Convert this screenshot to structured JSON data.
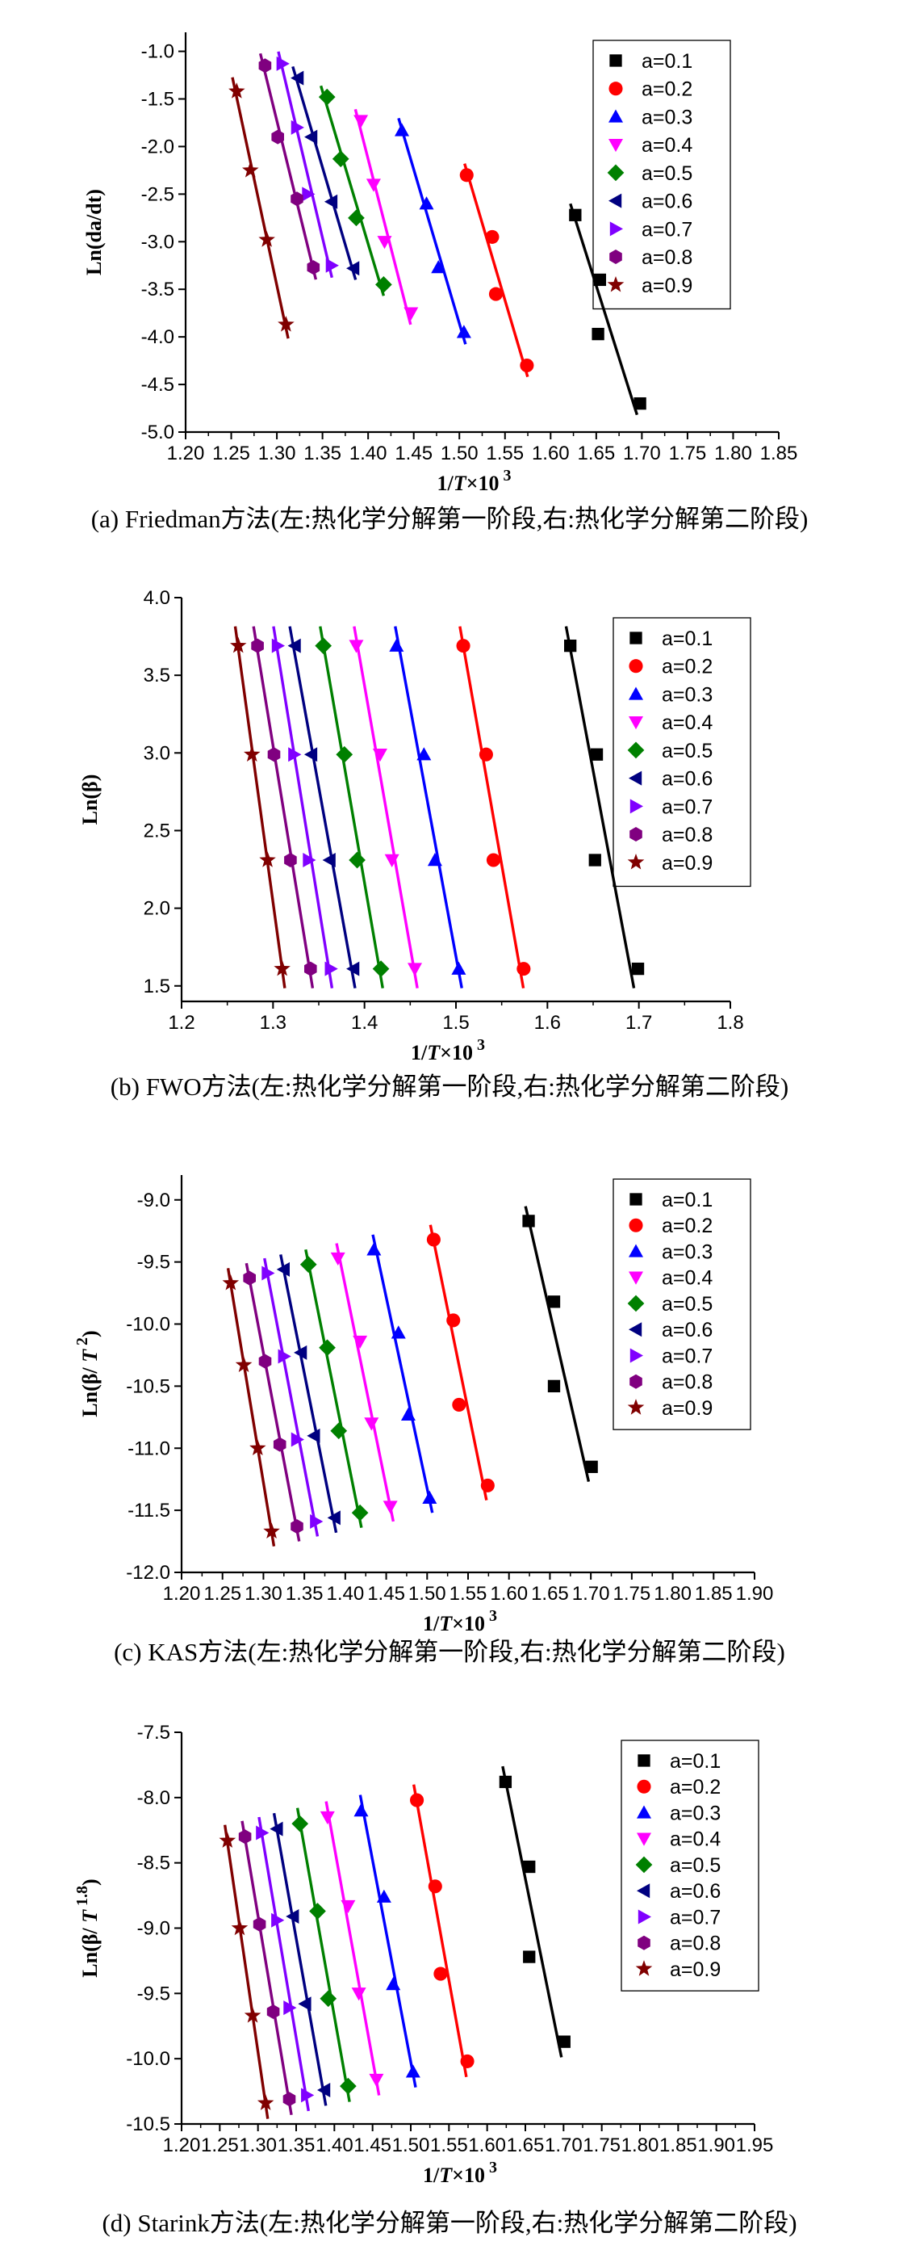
{
  "colors": {
    "a=0.1": "#000000",
    "a=0.2": "#ff0000",
    "a=0.3": "#0000ff",
    "a=0.4": "#ff00ff",
    "a=0.5": "#008000",
    "a=0.6": "#000080",
    "a=0.7": "#8000ff",
    "a=0.8": "#800080",
    "a=0.9": "#800000"
  },
  "marker_shapes": {
    "a=0.1": "square",
    "a=0.2": "circle",
    "a=0.3": "triangle-up",
    "a=0.4": "triangle-down",
    "a=0.5": "diamond",
    "a=0.6": "triangle-left",
    "a=0.7": "triangle-right",
    "a=0.8": "hexagon",
    "a=0.9": "star"
  },
  "chart_data": [
    {
      "type": "scatter",
      "panel_id": "a",
      "caption": "(a) Friedman方法(左:热化学分解第一阶段,右:热化学分解第二阶段)",
      "ylabel": "Ln(da/dt)",
      "xlabel_prefix": "1/",
      "xlabel_var": "T",
      "xlabel_suffix": "×10",
      "xlabel_sup": "3",
      "xlim": [
        1.2,
        1.85
      ],
      "ylim": [
        -5.0,
        -0.8
      ],
      "xticks": [
        "1.20",
        "1.25",
        "1.30",
        "1.35",
        "1.40",
        "1.45",
        "1.50",
        "1.55",
        "1.60",
        "1.65",
        "1.70",
        "1.75",
        "1.80",
        "1.85"
      ],
      "yticks": [
        "-1.0",
        "-1.5",
        "-2.0",
        "-2.5",
        "-3.0",
        "-3.5",
        "-4.0",
        "-4.5",
        "-5.0"
      ],
      "series": [
        {
          "name": "a=0.1",
          "x": [
            1.627,
            1.654,
            1.652,
            1.698
          ],
          "y": [
            -2.72,
            -3.4,
            -3.97,
            -4.7
          ]
        },
        {
          "name": "a=0.2",
          "x": [
            1.508,
            1.536,
            1.54,
            1.574
          ],
          "y": [
            -2.3,
            -2.95,
            -3.55,
            -4.3
          ]
        },
        {
          "name": "a=0.3",
          "x": [
            1.437,
            1.464,
            1.477,
            1.505
          ],
          "y": [
            -1.83,
            -2.6,
            -3.27,
            -3.95
          ]
        },
        {
          "name": "a=0.4",
          "x": [
            1.392,
            1.406,
            1.418,
            1.447
          ],
          "y": [
            -1.73,
            -2.4,
            -3.0,
            -3.75
          ]
        },
        {
          "name": "a=0.5",
          "x": [
            1.355,
            1.37,
            1.387,
            1.417
          ],
          "y": [
            -1.48,
            -2.13,
            -2.75,
            -3.45
          ]
        },
        {
          "name": "a=0.6",
          "x": [
            1.323,
            1.338,
            1.36,
            1.384
          ],
          "y": [
            -1.28,
            -1.9,
            -2.58,
            -3.28
          ]
        },
        {
          "name": "a=0.7",
          "x": [
            1.306,
            1.322,
            1.334,
            1.36
          ],
          "y": [
            -1.13,
            -1.8,
            -2.5,
            -3.25
          ]
        },
        {
          "name": "a=0.8",
          "x": [
            1.287,
            1.301,
            1.322,
            1.34
          ],
          "y": [
            -1.15,
            -1.9,
            -2.55,
            -3.27
          ]
        },
        {
          "name": "a=0.9",
          "x": [
            1.256,
            1.271,
            1.289,
            1.31
          ],
          "y": [
            -1.42,
            -2.25,
            -2.98,
            -3.87
          ]
        }
      ]
    },
    {
      "type": "scatter",
      "panel_id": "b",
      "caption": "(b) FWO方法(左:热化学分解第一阶段,右:热化学分解第二阶段)",
      "ylabel": "Ln(β)",
      "xlabel_prefix": "1/",
      "xlabel_var": "T",
      "xlabel_suffix": "×10",
      "xlabel_sup": "3",
      "xlim": [
        1.2,
        1.8
      ],
      "ylim": [
        1.4,
        4.0
      ],
      "xticks": [
        "1.2",
        "1.3",
        "1.4",
        "1.5",
        "1.6",
        "1.7",
        "1.8"
      ],
      "yticks": [
        "1.5",
        "2.0",
        "2.5",
        "3.0",
        "3.5",
        "4.0"
      ],
      "series": [
        {
          "name": "a=0.1",
          "x": [
            1.625,
            1.654,
            1.652,
            1.699
          ],
          "y": [
            3.69,
            2.99,
            2.31,
            1.61
          ]
        },
        {
          "name": "a=0.2",
          "x": [
            1.508,
            1.533,
            1.541,
            1.574
          ],
          "y": [
            3.69,
            2.99,
            2.31,
            1.61
          ]
        },
        {
          "name": "a=0.3",
          "x": [
            1.435,
            1.465,
            1.477,
            1.503
          ],
          "y": [
            3.69,
            2.99,
            2.31,
            1.61
          ]
        },
        {
          "name": "a=0.4",
          "x": [
            1.391,
            1.417,
            1.43,
            1.455
          ],
          "y": [
            3.69,
            2.99,
            2.31,
            1.61
          ]
        },
        {
          "name": "a=0.5",
          "x": [
            1.355,
            1.378,
            1.392,
            1.418
          ],
          "y": [
            3.69,
            2.99,
            2.31,
            1.61
          ]
        },
        {
          "name": "a=0.6",
          "x": [
            1.324,
            1.342,
            1.362,
            1.388
          ],
          "y": [
            3.69,
            2.99,
            2.31,
            1.61
          ]
        },
        {
          "name": "a=0.7",
          "x": [
            1.305,
            1.323,
            1.339,
            1.363
          ],
          "y": [
            3.69,
            2.99,
            2.31,
            1.61
          ]
        },
        {
          "name": "a=0.8",
          "x": [
            1.283,
            1.301,
            1.319,
            1.341
          ],
          "y": [
            3.69,
            2.99,
            2.31,
            1.61
          ]
        },
        {
          "name": "a=0.9",
          "x": [
            1.262,
            1.277,
            1.294,
            1.31
          ],
          "y": [
            3.69,
            2.99,
            2.31,
            1.61
          ]
        }
      ]
    },
    {
      "type": "scatter",
      "panel_id": "c",
      "caption": "(c) KAS方法(左:热化学分解第一阶段,右:热化学分解第二阶段)",
      "ylabel": "Ln(β/",
      "ylabel_var": "T",
      "ylabel_sup": "2",
      "ylabel_close": ")",
      "xlabel_prefix": "1/",
      "xlabel_var": "T",
      "xlabel_suffix": "×10",
      "xlabel_sup": "3",
      "xlim": [
        1.2,
        1.9
      ],
      "ylim": [
        -12.0,
        -8.8
      ],
      "xticks": [
        "1.20",
        "1.25",
        "1.30",
        "1.35",
        "1.40",
        "1.45",
        "1.50",
        "1.55",
        "1.60",
        "1.65",
        "1.70",
        "1.75",
        "1.80",
        "1.85",
        "1.90"
      ],
      "yticks": [
        "-9.0",
        "-9.5",
        "-10.0",
        "-10.5",
        "-11.0",
        "-11.5",
        "-12.0"
      ],
      "series": [
        {
          "name": "a=0.1",
          "x": [
            1.624,
            1.655,
            1.655,
            1.701
          ],
          "y": [
            -9.17,
            -9.82,
            -10.5,
            -11.15
          ]
        },
        {
          "name": "a=0.2",
          "x": [
            1.508,
            1.532,
            1.539,
            1.574
          ],
          "y": [
            -9.32,
            -9.97,
            -10.65,
            -11.3
          ]
        },
        {
          "name": "a=0.3",
          "x": [
            1.435,
            1.465,
            1.477,
            1.503
          ],
          "y": [
            -9.4,
            -10.07,
            -10.73,
            -11.4
          ]
        },
        {
          "name": "a=0.4",
          "x": [
            1.391,
            1.418,
            1.432,
            1.455
          ],
          "y": [
            -9.47,
            -10.14,
            -10.8,
            -11.47
          ]
        },
        {
          "name": "a=0.5",
          "x": [
            1.355,
            1.378,
            1.392,
            1.418
          ],
          "y": [
            -9.52,
            -10.19,
            -10.86,
            -11.52
          ]
        },
        {
          "name": "a=0.6",
          "x": [
            1.325,
            1.346,
            1.362,
            1.387
          ],
          "y": [
            -9.56,
            -10.23,
            -10.9,
            -11.56
          ]
        },
        {
          "name": "a=0.7",
          "x": [
            1.305,
            1.325,
            1.341,
            1.364
          ],
          "y": [
            -9.59,
            -10.26,
            -10.93,
            -11.59
          ]
        },
        {
          "name": "a=0.8",
          "x": [
            1.283,
            1.302,
            1.32,
            1.341
          ],
          "y": [
            -9.63,
            -10.3,
            -10.97,
            -11.63
          ]
        },
        {
          "name": "a=0.9",
          "x": [
            1.26,
            1.276,
            1.293,
            1.31
          ],
          "y": [
            -9.67,
            -10.33,
            -11.0,
            -11.67
          ]
        }
      ]
    },
    {
      "type": "scatter",
      "panel_id": "d",
      "caption": "(d) Starink方法(左:热化学分解第一阶段,右:热化学分解第二阶段)",
      "ylabel": "Ln(β/",
      "ylabel_var": "T",
      "ylabel_sup": "1.8",
      "ylabel_close": ")",
      "xlabel_prefix": "1/",
      "xlabel_var": "T",
      "xlabel_suffix": "×10",
      "xlabel_sup": "3",
      "xlim": [
        1.2,
        1.95
      ],
      "ylim": [
        -10.5,
        -7.5
      ],
      "xticks": [
        "1.20",
        "1.25",
        "1.30",
        "1.35",
        "1.40",
        "1.45",
        "1.50",
        "1.55",
        "1.60",
        "1.65",
        "1.70",
        "1.75",
        "1.80",
        "1.85",
        "1.90",
        "1.95"
      ],
      "yticks": [
        "-7.5",
        "-8.0",
        "-8.5",
        "-9.0",
        "-9.5",
        "-10.0",
        "-10.5"
      ],
      "series": [
        {
          "name": "a=0.1",
          "x": [
            1.624,
            1.655,
            1.655,
            1.701
          ],
          "y": [
            -7.88,
            -8.53,
            -9.22,
            -9.87
          ]
        },
        {
          "name": "a=0.2",
          "x": [
            1.508,
            1.532,
            1.539,
            1.574
          ],
          "y": [
            -8.02,
            -8.68,
            -9.35,
            -10.02
          ]
        },
        {
          "name": "a=0.3",
          "x": [
            1.435,
            1.465,
            1.477,
            1.503
          ],
          "y": [
            -8.1,
            -8.76,
            -9.43,
            -10.1
          ]
        },
        {
          "name": "a=0.4",
          "x": [
            1.391,
            1.418,
            1.432,
            1.455
          ],
          "y": [
            -8.15,
            -8.83,
            -9.5,
            -10.16
          ]
        },
        {
          "name": "a=0.5",
          "x": [
            1.355,
            1.378,
            1.392,
            1.418
          ],
          "y": [
            -8.2,
            -8.87,
            -9.54,
            -10.21
          ]
        },
        {
          "name": "a=0.6",
          "x": [
            1.325,
            1.346,
            1.362,
            1.387
          ],
          "y": [
            -8.24,
            -8.91,
            -9.58,
            -10.24
          ]
        },
        {
          "name": "a=0.7",
          "x": [
            1.305,
            1.325,
            1.341,
            1.364
          ],
          "y": [
            -8.27,
            -8.94,
            -9.61,
            -10.28
          ]
        },
        {
          "name": "a=0.8",
          "x": [
            1.283,
            1.302,
            1.32,
            1.341
          ],
          "y": [
            -8.3,
            -8.97,
            -9.64,
            -10.31
          ]
        },
        {
          "name": "a=0.9",
          "x": [
            1.26,
            1.276,
            1.293,
            1.31
          ],
          "y": [
            -8.33,
            -9.0,
            -9.67,
            -10.34
          ]
        }
      ]
    }
  ]
}
